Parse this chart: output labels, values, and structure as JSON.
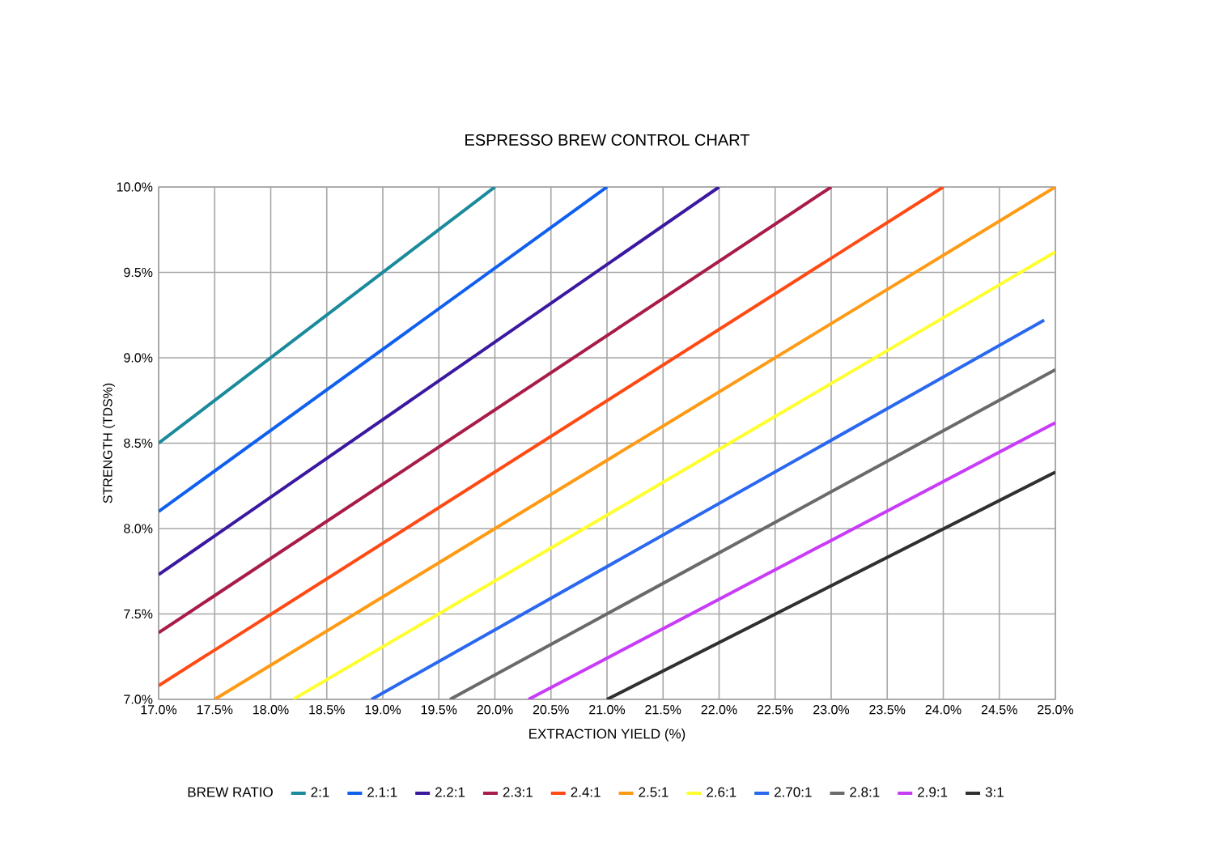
{
  "chart_data": {
    "type": "line",
    "title": "ESPRESSO BREW CONTROL CHART",
    "xlabel": "EXTRACTION YIELD (%)",
    "ylabel": "STRENGTH (TDS%)",
    "legend_title": "BREW RATIO",
    "legend": "bottom",
    "grid": true,
    "marker": "none",
    "line_style": "solid",
    "xlim": [
      17,
      25
    ],
    "ylim": [
      7,
      10
    ],
    "xticks": [
      {
        "value": 17,
        "label": "17.0%"
      },
      {
        "value": 17.5,
        "label": "17.5%"
      },
      {
        "value": 18,
        "label": "18.0%"
      },
      {
        "value": 18.5,
        "label": "18.5%"
      },
      {
        "value": 19,
        "label": "19.0%"
      },
      {
        "value": 19.5,
        "label": "19.5%"
      },
      {
        "value": 20,
        "label": "20.0%"
      },
      {
        "value": 20.5,
        "label": "20.5%"
      },
      {
        "value": 21,
        "label": "21.0%"
      },
      {
        "value": 21.5,
        "label": "21.5%"
      },
      {
        "value": 22,
        "label": "22.0%"
      },
      {
        "value": 22.5,
        "label": "22.5%"
      },
      {
        "value": 23,
        "label": "23.0%"
      },
      {
        "value": 23.5,
        "label": "23.5%"
      },
      {
        "value": 24,
        "label": "24.0%"
      },
      {
        "value": 24.5,
        "label": "24.5%"
      },
      {
        "value": 25,
        "label": "25.0%"
      }
    ],
    "yticks": [
      {
        "value": 7,
        "label": "7.0%"
      },
      {
        "value": 7.5,
        "label": "7.5%"
      },
      {
        "value": 8,
        "label": "8.0%"
      },
      {
        "value": 8.5,
        "label": "8.5%"
      },
      {
        "value": 9,
        "label": "9.0%"
      },
      {
        "value": 9.5,
        "label": "9.5%"
      },
      {
        "value": 10,
        "label": "10.0%"
      }
    ],
    "series": [
      {
        "name": "2:1",
        "color": "#1a8a9c",
        "x": [
          17,
          20
        ],
        "values": [
          8.5,
          10
        ]
      },
      {
        "name": "2.1:1",
        "color": "#1060f0",
        "x": [
          17,
          21
        ],
        "values": [
          8.1,
          10
        ]
      },
      {
        "name": "2.2:1",
        "color": "#3a18a0",
        "x": [
          17,
          22
        ],
        "values": [
          7.73,
          10
        ]
      },
      {
        "name": "2.3:1",
        "color": "#a81c48",
        "x": [
          17,
          23
        ],
        "values": [
          7.39,
          10
        ]
      },
      {
        "name": "2.4:1",
        "color": "#ff4a14",
        "x": [
          17,
          24
        ],
        "values": [
          7.08,
          10
        ]
      },
      {
        "name": "2.5:1",
        "color": "#ff9a14",
        "x": [
          17.5,
          25
        ],
        "values": [
          7,
          10
        ]
      },
      {
        "name": "2.6:1",
        "color": "#ffff30",
        "x": [
          18.2,
          25
        ],
        "values": [
          7,
          9.62
        ]
      },
      {
        "name": "2.70:1",
        "color": "#2a68f0",
        "x": [
          18.9,
          24.9
        ],
        "values": [
          7,
          9.22
        ]
      },
      {
        "name": "2.8:1",
        "color": "#6a6a6a",
        "x": [
          19.6,
          25
        ],
        "values": [
          7,
          8.93
        ]
      },
      {
        "name": "2.9:1",
        "color": "#c83cf8",
        "x": [
          20.3,
          25
        ],
        "values": [
          7,
          8.62
        ]
      },
      {
        "name": "3:1",
        "color": "#303030",
        "x": [
          21,
          25
        ],
        "values": [
          7,
          8.33
        ]
      }
    ]
  }
}
